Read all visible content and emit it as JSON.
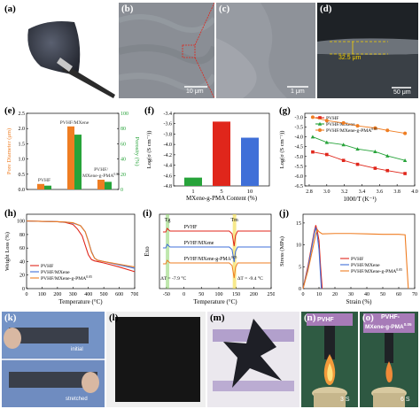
{
  "labels": {
    "a": "(a)",
    "b": "(b)",
    "c": "(c)",
    "d": "(d)",
    "e": "(e)",
    "f": "(f)",
    "g": "(g)",
    "h": "(h)",
    "i": "(i)",
    "j": "(j)",
    "k": "(k)",
    "l": "(l)",
    "m": "(m)",
    "n": "(n)",
    "o": "(o)"
  },
  "sem": {
    "b_scale": "10 μm",
    "c_scale": "1 μm",
    "d_scale": "50 μm",
    "d_thickness": "32.5 μm"
  },
  "photos": {
    "k_top": "initial",
    "k_bottom": "stretched",
    "n_label": "PVHF",
    "o_label_1": "PVHF-",
    "o_label_2": "MXene-g-PMA",
    "o_sup": "0.05",
    "n_time": "3 S",
    "o_time": "6 S"
  },
  "colors": {
    "red": "#e0261b",
    "green": "#27a33a",
    "orange": "#ef7d22",
    "blue": "#3f6fd8",
    "black": "#000000"
  },
  "chart_data": [
    {
      "panel": "e",
      "type": "bar",
      "ylabel_left": "Pore Diameter (μm)",
      "ylabel_right": "Porosity (%)",
      "ylim_left": [
        0,
        2.5
      ],
      "ylim_right": [
        0,
        100
      ],
      "yticks_left": [
        "0.0",
        "0.5",
        "1.0",
        "1.5",
        "2.0",
        "2.5"
      ],
      "yticks_right": [
        "0",
        "20",
        "40",
        "60",
        "80",
        "100"
      ],
      "categories": [
        "PVHF",
        "PVHF/MXene",
        "PVHF/MXene-g-PMA"
      ],
      "category_sup": [
        "",
        "",
        "0.05"
      ],
      "series": [
        {
          "axis": "left",
          "values": [
            0.18,
            2.07,
            0.32
          ]
        },
        {
          "axis": "right",
          "values": [
            5,
            72,
            10
          ]
        }
      ]
    },
    {
      "panel": "f",
      "type": "bar",
      "xlabel": "MXene-g-PMA Content (%)",
      "ylabel": "Log(σ (S cm⁻¹))",
      "ylim": [
        -4.8,
        -3.4
      ],
      "yticks": [
        "-4.8",
        "-4.6",
        "-4.4",
        "-4.2",
        "-4.0",
        "-3.8",
        "-3.6",
        "-3.4"
      ],
      "categories": [
        "1",
        "5",
        "10"
      ],
      "values": [
        -4.64,
        -3.56,
        -3.87
      ]
    },
    {
      "panel": "g",
      "type": "line",
      "xlabel": "1000/T (K⁻¹)",
      "ylabel": "Log(σ (S cm⁻¹))",
      "xlim": [
        2.75,
        4.0
      ],
      "ylim": [
        -6.5,
        -2.8
      ],
      "xticks": [
        "2.8",
        "3.0",
        "3.2",
        "3.4",
        "3.6",
        "3.8",
        "4.0"
      ],
      "yticks": [
        "-6.5",
        "-6.0",
        "-5.5",
        "-5.0",
        "-4.5",
        "-4.0",
        "-3.5",
        "-3.0"
      ],
      "x": [
        2.84,
        3.0,
        3.19,
        3.35,
        3.55,
        3.69,
        3.89
      ],
      "series": [
        {
          "name": "PVHF",
          "sup": "",
          "values": [
            -4.77,
            -4.9,
            -5.2,
            -5.4,
            -5.6,
            -5.72,
            -5.87
          ]
        },
        {
          "name": "PVHF/MXene",
          "sup": "",
          "values": [
            -4.0,
            -4.28,
            -4.4,
            -4.62,
            -4.75,
            -4.97,
            -5.2
          ]
        },
        {
          "name": "PVHF/MXene-g-PMA",
          "sup": "0.05",
          "values": [
            -3.0,
            -3.17,
            -3.29,
            -3.44,
            -3.55,
            -3.67,
            -3.82
          ]
        }
      ]
    },
    {
      "panel": "h",
      "type": "line",
      "xlabel": "Temperature (°C)",
      "ylabel": "Weight Loss (%)",
      "xlim": [
        0,
        700
      ],
      "ylim": [
        0,
        110
      ],
      "xticks": [
        "0",
        "100",
        "200",
        "300",
        "400",
        "500",
        "600",
        "700"
      ],
      "yticks": [
        "0",
        "20",
        "40",
        "60",
        "80",
        "100"
      ],
      "series": [
        {
          "name": "PVHF",
          "sup": "",
          "x": [
            0,
            100,
            200,
            250,
            300,
            330,
            360,
            380,
            400,
            420,
            440,
            460,
            500,
            600,
            700
          ],
          "values": [
            100,
            99.5,
            99,
            98,
            95,
            88,
            78,
            64,
            50,
            43,
            41,
            40,
            38,
            32,
            25
          ]
        },
        {
          "name": "PVHF/MXene",
          "sup": "",
          "x": [
            0,
            100,
            200,
            250,
            300,
            350,
            380,
            400,
            420,
            440,
            460,
            500,
            600,
            700
          ],
          "values": [
            100,
            99.5,
            99,
            98.5,
            97,
            93,
            84,
            70,
            55,
            45,
            42,
            40,
            35,
            30
          ]
        },
        {
          "name": "PVHF/MXene-g-PMA",
          "sup": "0.05",
          "x": [
            0,
            100,
            200,
            250,
            300,
            350,
            380,
            400,
            420,
            440,
            460,
            500,
            600,
            700
          ],
          "values": [
            100,
            99.5,
            99,
            98.5,
            97.5,
            93,
            84,
            70,
            54,
            45,
            42,
            40,
            36,
            32
          ]
        }
      ]
    },
    {
      "panel": "i",
      "type": "line",
      "xlabel": "Temperature (°C)",
      "ylabel": "Exo",
      "xlim": [
        -70,
        250
      ],
      "xticks": [
        "-50",
        "0",
        "50",
        "100",
        "150",
        "200",
        "250"
      ],
      "annotations": [
        "Tg",
        "Tm",
        "ΔT = -7.9 °C",
        "ΔT = -9.4 °C"
      ],
      "series": [
        {
          "name": "PVHF",
          "sup": ""
        },
        {
          "name": "PVHF/MXene",
          "sup": ""
        },
        {
          "name": "PVHF/MXene-g-PMA",
          "sup": "0.05"
        }
      ]
    },
    {
      "panel": "j",
      "type": "line",
      "xlabel": "Strain (%)",
      "ylabel": "Stress (MPa)",
      "xlim": [
        0,
        70
      ],
      "ylim": [
        0,
        17
      ],
      "xticks": [
        "0",
        "10",
        "20",
        "30",
        "40",
        "50",
        "60",
        "70"
      ],
      "yticks": [
        "0",
        "5",
        "10",
        "15"
      ],
      "series": [
        {
          "name": "PVHF",
          "sup": "",
          "x": [
            0,
            3,
            5,
            7,
            8,
            9,
            10,
            11,
            12
          ],
          "values": [
            0,
            5,
            9,
            13,
            14.5,
            13,
            11,
            5,
            0
          ]
        },
        {
          "name": "PVHF/MXene",
          "sup": "",
          "x": [
            0,
            3,
            5,
            7,
            8,
            9,
            10,
            11,
            11.5
          ],
          "values": [
            0,
            4.5,
            8.5,
            12.5,
            14,
            12,
            9,
            3,
            0
          ]
        },
        {
          "name": "PVHF/MXene-g-PMA",
          "sup": "0.05",
          "x": [
            0,
            3,
            6,
            8,
            9,
            10,
            12,
            20,
            30,
            40,
            50,
            60,
            64,
            65,
            66
          ],
          "values": [
            0,
            4,
            9,
            12.5,
            13.5,
            13,
            12.5,
            12.6,
            12.6,
            12.5,
            12.4,
            12.4,
            12.3,
            6,
            0
          ]
        }
      ]
    }
  ]
}
